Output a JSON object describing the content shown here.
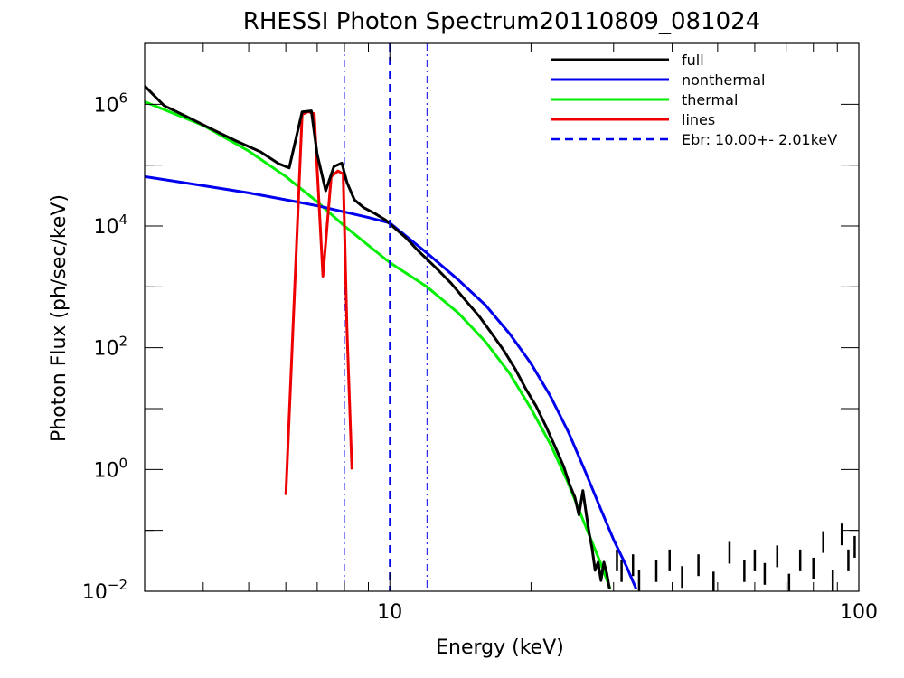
{
  "chart_data": {
    "type": "line",
    "title": "RHESSI Photon Spectrum20110809_081024",
    "xlabel": "Energy (keV)",
    "ylabel": "Photon Flux (ph/sec/keV)",
    "xscale": "log",
    "yscale": "log",
    "xlim": [
      3.0,
      100
    ],
    "ylim": [
      0.01,
      10000000
    ],
    "x_ticks": [
      {
        "value": 10,
        "label": "10"
      },
      {
        "value": 100,
        "label": "100"
      }
    ],
    "y_ticks": [
      {
        "value": 0.01,
        "base": "10",
        "exp": "−2"
      },
      {
        "value": 1,
        "base": "10",
        "exp": "0"
      },
      {
        "value": 100,
        "base": "10",
        "exp": "2"
      },
      {
        "value": 10000,
        "base": "10",
        "exp": "4"
      },
      {
        "value": 1000000,
        "base": "10",
        "exp": "6"
      }
    ],
    "legend_position": "top-right",
    "series": [
      {
        "name": "full",
        "color": "#000000",
        "dash": "solid",
        "points": [
          [
            3.0,
            2000000
          ],
          [
            3.3,
            950000
          ],
          [
            3.7,
            620000
          ],
          [
            4.2,
            380000
          ],
          [
            4.7,
            250000
          ],
          [
            5.3,
            165000
          ],
          [
            5.8,
            105000
          ],
          [
            6.1,
            90000
          ],
          [
            6.5,
            750000
          ],
          [
            6.8,
            780000
          ],
          [
            7.0,
            150000
          ],
          [
            7.3,
            38000
          ],
          [
            7.6,
            95000
          ],
          [
            7.9,
            108000
          ],
          [
            8.1,
            52000
          ],
          [
            8.4,
            27000
          ],
          [
            8.8,
            20000
          ],
          [
            9.3,
            16000
          ],
          [
            9.8,
            12500
          ],
          [
            10.2,
            9500
          ],
          [
            10.8,
            6500
          ],
          [
            11.5,
            3900
          ],
          [
            12.5,
            2100
          ],
          [
            13.5,
            1150
          ],
          [
            14.5,
            600
          ],
          [
            15.5,
            330
          ],
          [
            16.5,
            170
          ],
          [
            17.5,
            90
          ],
          [
            18.5,
            45
          ],
          [
            19.5,
            21
          ],
          [
            20.5,
            11
          ],
          [
            21.5,
            5.2
          ],
          [
            22.5,
            2.4
          ],
          [
            23.5,
            1.1
          ],
          [
            24.2,
            0.55
          ],
          [
            24.8,
            0.35
          ],
          [
            25.3,
            0.18
          ],
          [
            25.8,
            0.45
          ],
          [
            26.2,
            0.2
          ],
          [
            26.6,
            0.09
          ],
          [
            27.0,
            0.05
          ],
          [
            27.4,
            0.022
          ],
          [
            27.8,
            0.03
          ],
          [
            28.2,
            0.015
          ],
          [
            28.6,
            0.03
          ],
          [
            29.0,
            0.02
          ],
          [
            29.4,
            0.011
          ]
        ]
      },
      {
        "name": "nonthermal",
        "color": "#0000ee",
        "dash": "solid",
        "points": [
          [
            3.0,
            65000
          ],
          [
            4.0,
            46000
          ],
          [
            5.0,
            35000
          ],
          [
            6.0,
            27000
          ],
          [
            7.0,
            21500
          ],
          [
            8.0,
            17000
          ],
          [
            9.0,
            13800
          ],
          [
            10.0,
            11200
          ],
          [
            11.0,
            6200
          ],
          [
            12.0,
            3600
          ],
          [
            14.0,
            1300
          ],
          [
            16.0,
            500
          ],
          [
            18.0,
            170
          ],
          [
            20.0,
            55
          ],
          [
            22.0,
            16
          ],
          [
            24.0,
            4.2
          ],
          [
            26.0,
            1.0
          ],
          [
            28.0,
            0.25
          ],
          [
            30.0,
            0.07
          ],
          [
            32.0,
            0.025
          ],
          [
            33.5,
            0.011
          ]
        ]
      },
      {
        "name": "thermal",
        "color": "#00ee00",
        "dash": "solid",
        "points": [
          [
            3.0,
            1100000
          ],
          [
            4.0,
            450000
          ],
          [
            5.0,
            170000
          ],
          [
            6.0,
            65000
          ],
          [
            7.0,
            25000
          ],
          [
            8.0,
            10000
          ],
          [
            9.0,
            4800
          ],
          [
            10.0,
            2500
          ],
          [
            12.0,
            1000
          ],
          [
            14.0,
            370
          ],
          [
            16.0,
            125
          ],
          [
            18.0,
            38
          ],
          [
            20.0,
            10
          ],
          [
            22.0,
            2.6
          ],
          [
            24.0,
            0.6
          ],
          [
            26.0,
            0.13
          ],
          [
            28.0,
            0.032
          ],
          [
            29.5,
            0.011
          ]
        ]
      },
      {
        "name": "lines",
        "color": "#ee0000",
        "dash": "solid",
        "points": [
          [
            6.0,
            0.38
          ],
          [
            6.5,
            680000
          ],
          [
            6.7,
            760000
          ],
          [
            6.9,
            700000
          ],
          [
            7.2,
            1500
          ],
          [
            7.5,
            65000
          ],
          [
            7.75,
            80000
          ],
          [
            7.95,
            72000
          ],
          [
            8.1,
            200
          ],
          [
            8.3,
            1.0
          ]
        ]
      },
      {
        "name": "Ebr:  10.00+-  2.01keV",
        "color": "#0000ee",
        "dash": "dashed",
        "vline": 10.0
      }
    ],
    "reference_lines": [
      {
        "x": 8.0,
        "color": "#0000ee",
        "dash": "dashdot"
      },
      {
        "x": 12.0,
        "color": "#0000ee",
        "dash": "dashdot"
      }
    ],
    "scatter_fragments": [
      [
        30.5,
        0.03
      ],
      [
        31.2,
        0.02
      ],
      [
        33.0,
        0.025
      ],
      [
        34.0,
        0.014
      ],
      [
        37.0,
        0.02
      ],
      [
        39.5,
        0.03
      ],
      [
        42.0,
        0.016
      ],
      [
        45.5,
        0.025
      ],
      [
        49.0,
        0.013
      ],
      [
        53.0,
        0.04
      ],
      [
        57.0,
        0.02
      ],
      [
        60.0,
        0.03
      ],
      [
        63.0,
        0.018
      ],
      [
        67.0,
        0.035
      ],
      [
        71.0,
        0.012
      ],
      [
        75.0,
        0.03
      ],
      [
        80.0,
        0.022
      ],
      [
        84.0,
        0.06
      ],
      [
        88.0,
        0.014
      ],
      [
        92.0,
        0.08
      ],
      [
        95.0,
        0.03
      ],
      [
        98.0,
        0.05
      ]
    ]
  }
}
